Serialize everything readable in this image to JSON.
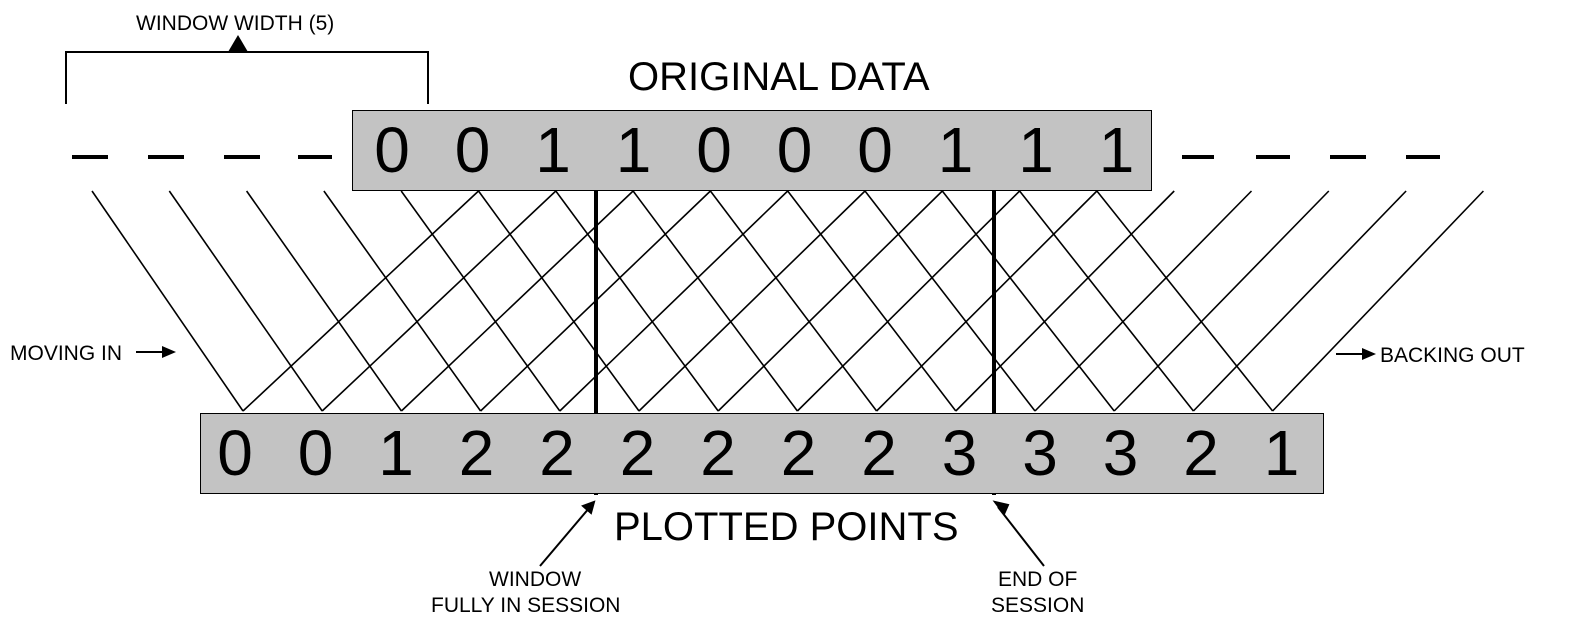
{
  "labels": {
    "window_width": "WINDOW WIDTH (5)",
    "original_data": "ORIGINAL DATA",
    "plotted_points": "PLOTTED POINTS",
    "moving_in": "MOVING IN",
    "backing_out": "BACKING OUT",
    "window_fully_line1": "WINDOW",
    "window_fully_line2": "FULLY IN SESSION",
    "end_line1": "END OF",
    "end_line2": "SESSION"
  },
  "original_data": [
    "0",
    "0",
    "1",
    "1",
    "0",
    "0",
    "0",
    "1",
    "1",
    "1"
  ],
  "plotted_points": [
    "0",
    "0",
    "1",
    "2",
    "2",
    "2",
    "2",
    "2",
    "2",
    "3",
    "3",
    "3",
    "2",
    "1"
  ],
  "colors": {
    "box_fill": "#c3c3c3",
    "ink": "#000000"
  }
}
